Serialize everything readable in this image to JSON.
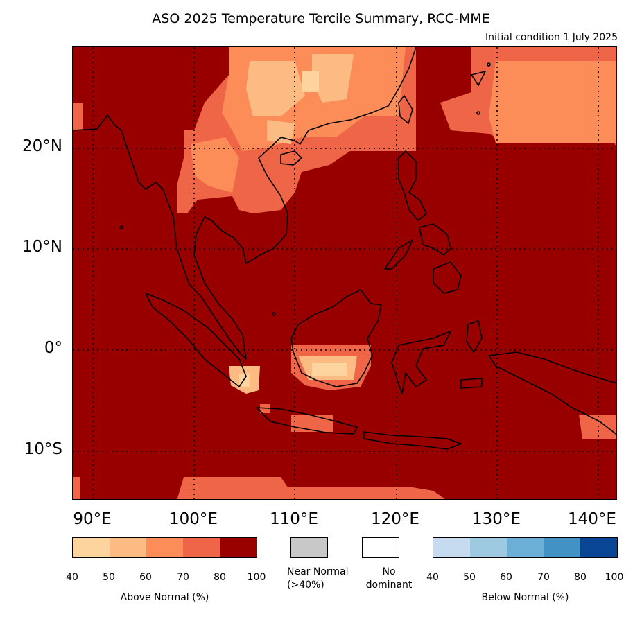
{
  "title": "ASO 2025 Temperature Tercile Summary, RCC-MME",
  "subtitle": "Initial condition 1 July 2025",
  "map": {
    "extent": {
      "lon_min": 88,
      "lon_max": 142,
      "lat_min": -15,
      "lat_max": 30
    },
    "lat_labels": [
      {
        "lat": 20,
        "text": "20°N"
      },
      {
        "lat": 10,
        "text": "10°N"
      },
      {
        "lat": 0,
        "text": "0°"
      },
      {
        "lat": -10,
        "text": "10°S"
      }
    ],
    "lon_labels": [
      {
        "lon": 90,
        "text": "90°E"
      },
      {
        "lon": 100,
        "text": "100°E"
      },
      {
        "lon": 110,
        "text": "110°E"
      },
      {
        "lon": 120,
        "text": "120°E"
      },
      {
        "lon": 130,
        "text": "130°E"
      },
      {
        "lon": 140,
        "text": "140°E"
      }
    ],
    "gridlines": "dotted",
    "background_category": "80-100% above normal"
  },
  "legend": {
    "above_normal": {
      "label": "Above Normal (%)",
      "colors": [
        "#fdd49e",
        "#fdbb84",
        "#fc8d59",
        "#ef6548",
        "#990000"
      ],
      "ticks": [
        "40",
        "50",
        "60",
        "70",
        "80",
        "100"
      ]
    },
    "near_normal": {
      "label_line1": "Near Normal",
      "label_line2": "(>40%)",
      "color": "#c8c8c8"
    },
    "no_dominant": {
      "label_line1": "No",
      "label_line2": "dominant",
      "color": "#ffffff"
    },
    "below_normal": {
      "label": "Below Normal (%)",
      "colors": [
        "#c6dbef",
        "#9ecae1",
        "#6baed6",
        "#4292c6",
        "#084594"
      ],
      "ticks": [
        "40",
        "50",
        "60",
        "70",
        "80",
        "100"
      ]
    }
  }
}
